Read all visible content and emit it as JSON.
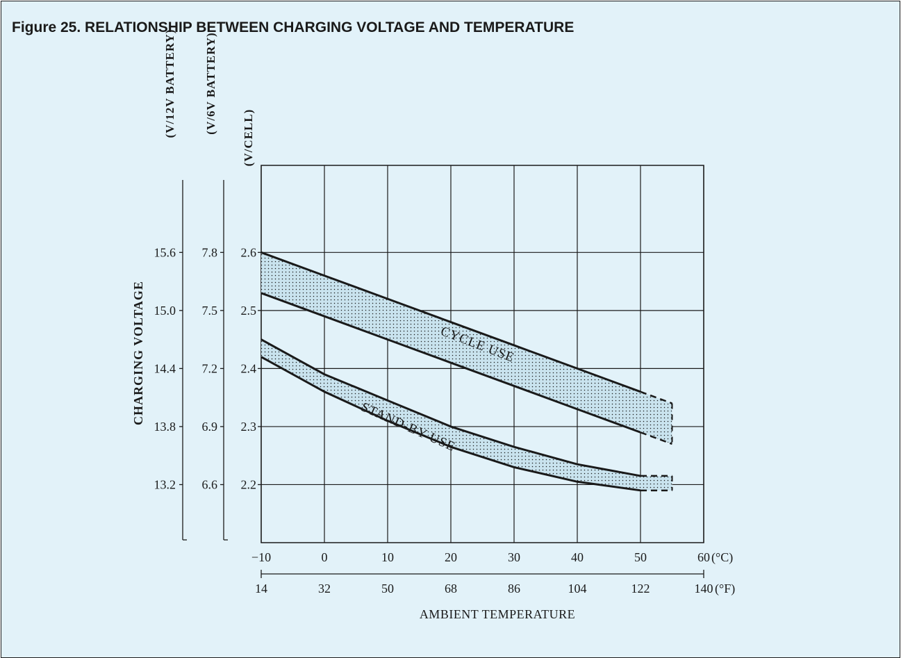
{
  "figure": {
    "title": "Figure 25.   RELATIONSHIP BETWEEN CHARGING VOLTAGE AND TEMPERATURE"
  },
  "colors": {
    "background": "#e2f2f9",
    "ink": "#1a1a1a",
    "band_fill": "#c9e3ee"
  },
  "chart_data": {
    "type": "area",
    "title": "",
    "xlabel": "AMBIENT TEMPERATURE",
    "ylabel": "CHARGING VOLTAGE",
    "xlim": [
      -10,
      60
    ],
    "ylim": [
      2.1,
      2.75
    ],
    "grid": true,
    "x_ticks_c": [
      -10,
      0,
      10,
      20,
      30,
      40,
      50,
      60
    ],
    "x_tick_labels_c": [
      "−10",
      "0",
      "10",
      "20",
      "30",
      "40",
      "50",
      "60"
    ],
    "x_unit_c": "(°C)",
    "x_tick_labels_f": [
      "14",
      "32",
      "50",
      "68",
      "86",
      "104",
      "122",
      "140"
    ],
    "x_unit_f": "(°F)",
    "y_axes": [
      {
        "name": "(V/12V BATTERY)",
        "ticks": [
          2.6,
          2.5,
          2.4,
          2.3,
          2.2
        ],
        "labels": [
          "15.6",
          "15.0",
          "14.4",
          "13.8",
          "13.2"
        ]
      },
      {
        "name": "(V/6V BATTERY)",
        "ticks": [
          2.6,
          2.5,
          2.4,
          2.3,
          2.2
        ],
        "labels": [
          "7.8",
          "7.5",
          "7.2",
          "6.9",
          "6.6"
        ]
      },
      {
        "name": "(V/CELL)",
        "ticks": [
          2.6,
          2.5,
          2.4,
          2.3,
          2.2
        ],
        "labels": [
          "2.6",
          "2.5",
          "2.4",
          "2.3",
          "2.2"
        ]
      }
    ],
    "series": [
      {
        "name": "CYCLE USE",
        "x": [
          -10,
          0,
          10,
          20,
          30,
          40,
          50
        ],
        "upper": [
          2.6,
          2.56,
          2.52,
          2.48,
          2.44,
          2.4,
          2.36
        ],
        "lower": [
          2.53,
          2.49,
          2.45,
          2.41,
          2.37,
          2.33,
          2.29
        ],
        "extension": {
          "x": [
            50,
            55
          ],
          "upper": [
            2.36,
            2.34
          ],
          "lower": [
            2.29,
            2.27
          ]
        }
      },
      {
        "name": "STAND-BY USE",
        "x": [
          -10,
          0,
          10,
          20,
          30,
          40,
          50
        ],
        "upper": [
          2.45,
          2.39,
          2.345,
          2.3,
          2.265,
          2.235,
          2.215
        ],
        "lower": [
          2.42,
          2.36,
          2.31,
          2.265,
          2.23,
          2.205,
          2.19
        ],
        "extension": {
          "x": [
            50,
            55
          ],
          "upper": [
            2.215,
            2.215
          ],
          "lower": [
            2.19,
            2.19
          ]
        }
      }
    ]
  }
}
